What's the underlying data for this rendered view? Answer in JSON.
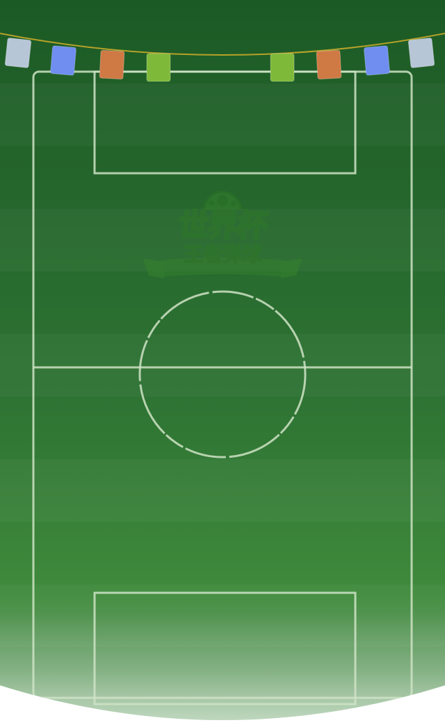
{
  "game": {
    "logo_title": "世界杯",
    "logo_subtitle": "王者弹球"
  },
  "flags": [
    {
      "color": "#b7c6d6"
    },
    {
      "color": "#6f8ef0"
    },
    {
      "color": "#cf7a45"
    },
    {
      "color": "#7fb93a"
    },
    {
      "color": "#7fb93a"
    },
    {
      "color": "#cf7a45"
    },
    {
      "color": "#6f8ef0"
    },
    {
      "color": "#b7c6d6"
    }
  ],
  "colors": {
    "grass_dark": "#1c5a25",
    "grass_light": "#3f8a3c",
    "line": "#cfe3c6",
    "background": "#ffffff"
  }
}
